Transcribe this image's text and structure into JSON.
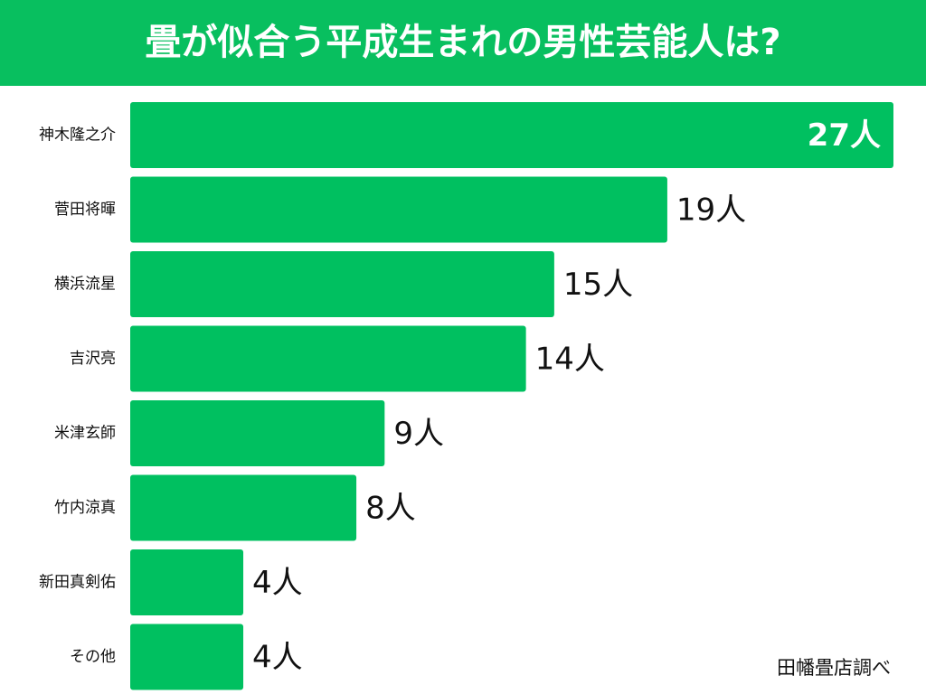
{
  "chart_data": {
    "type": "bar",
    "orientation": "horizontal",
    "title": "畳が似合う平成生まれの男性芸能人は?",
    "categories": [
      "神木隆之介",
      "菅田将暉",
      "横浜流星",
      "吉沢亮",
      "米津玄師",
      "竹内涼真",
      "新田真剣佑",
      "その他"
    ],
    "values": [
      27,
      19,
      15,
      14,
      9,
      8,
      4,
      4
    ],
    "value_labels": [
      "27人",
      "19人",
      "15人",
      "14人",
      "9人",
      "8人",
      "4人",
      "4人"
    ],
    "color": "#00c060",
    "source": "田幡畳店調べ"
  }
}
